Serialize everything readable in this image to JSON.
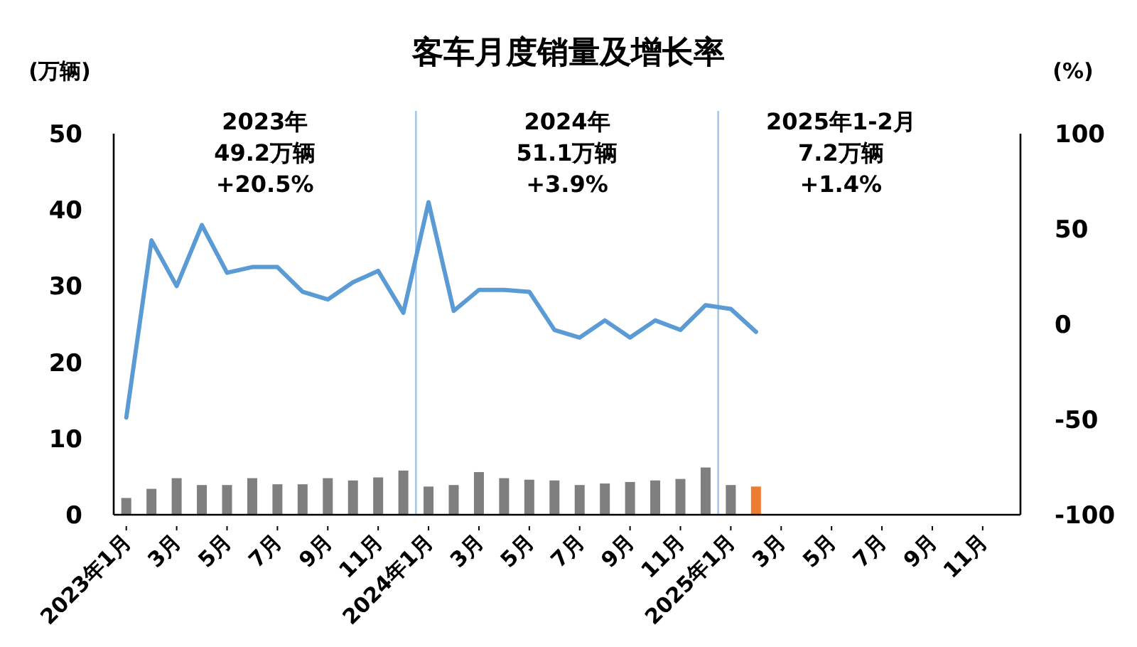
{
  "chart_data": {
    "type": "bar",
    "title": "客车月度销量及增长率",
    "ylabel": "(万辆)",
    "y2label": "(%)",
    "categories": [
      "2023年1月",
      null,
      "3月",
      null,
      "5月",
      null,
      "7月",
      null,
      "9月",
      null,
      "11月",
      null,
      "2024年1月",
      null,
      "3月",
      null,
      "5月",
      null,
      "7月",
      null,
      "9月",
      null,
      "11月",
      null,
      "2025年1月",
      null,
      "3月",
      null,
      "5月",
      null,
      "7月",
      null,
      "9月",
      null,
      "11月",
      null
    ],
    "series": [
      {
        "values": [
          2.2,
          3.4,
          4.8,
          3.9,
          3.9,
          4.8,
          4.0,
          4.0,
          4.8,
          4.5,
          4.9,
          5.8,
          3.7,
          3.9,
          5.6,
          4.8,
          4.6,
          4.5,
          3.9,
          4.1,
          4.3,
          4.5,
          4.7,
          6.2,
          3.9,
          3.7,
          null,
          null,
          null,
          null,
          null,
          null,
          null,
          null,
          null,
          null
        ],
        "colors": [
          "#7f7f7f",
          "#7f7f7f",
          "#7f7f7f",
          "#7f7f7f",
          "#7f7f7f",
          "#7f7f7f",
          "#7f7f7f",
          "#7f7f7f",
          "#7f7f7f",
          "#7f7f7f",
          "#7f7f7f",
          "#7f7f7f",
          "#7f7f7f",
          "#7f7f7f",
          "#7f7f7f",
          "#7f7f7f",
          "#7f7f7f",
          "#7f7f7f",
          "#7f7f7f",
          "#7f7f7f",
          "#7f7f7f",
          "#7f7f7f",
          "#7f7f7f",
          "#7f7f7f",
          "#7f7f7f",
          "#ed7d31",
          null,
          null,
          null,
          null,
          null,
          null,
          null,
          null,
          null,
          null
        ]
      },
      {
        "type": "line",
        "axis": "y2",
        "color": "#5b9bd5",
        "values": [
          -49,
          44,
          20,
          52,
          27,
          30,
          30,
          17,
          13,
          22,
          28,
          6,
          64,
          7,
          18,
          18,
          17,
          -3,
          -7,
          2,
          -7,
          2,
          -3,
          10,
          8,
          -4,
          null,
          null,
          null,
          null,
          null,
          null,
          null,
          null,
          null,
          null
        ]
      }
    ],
    "ylim": [
      0,
      50
    ],
    "yticks": [
      0,
      10,
      20,
      30,
      40,
      50
    ],
    "y2lim": [
      -100,
      100
    ],
    "y2ticks": [
      -100,
      -50,
      0,
      50,
      100
    ],
    "annotations": [
      "2023年\n49.2万辆\n+20.5%",
      "2024年\n51.1万辆\n+3.9%",
      "2025年1-2月\n7.2万辆\n+1.4%"
    ],
    "grid": false
  }
}
